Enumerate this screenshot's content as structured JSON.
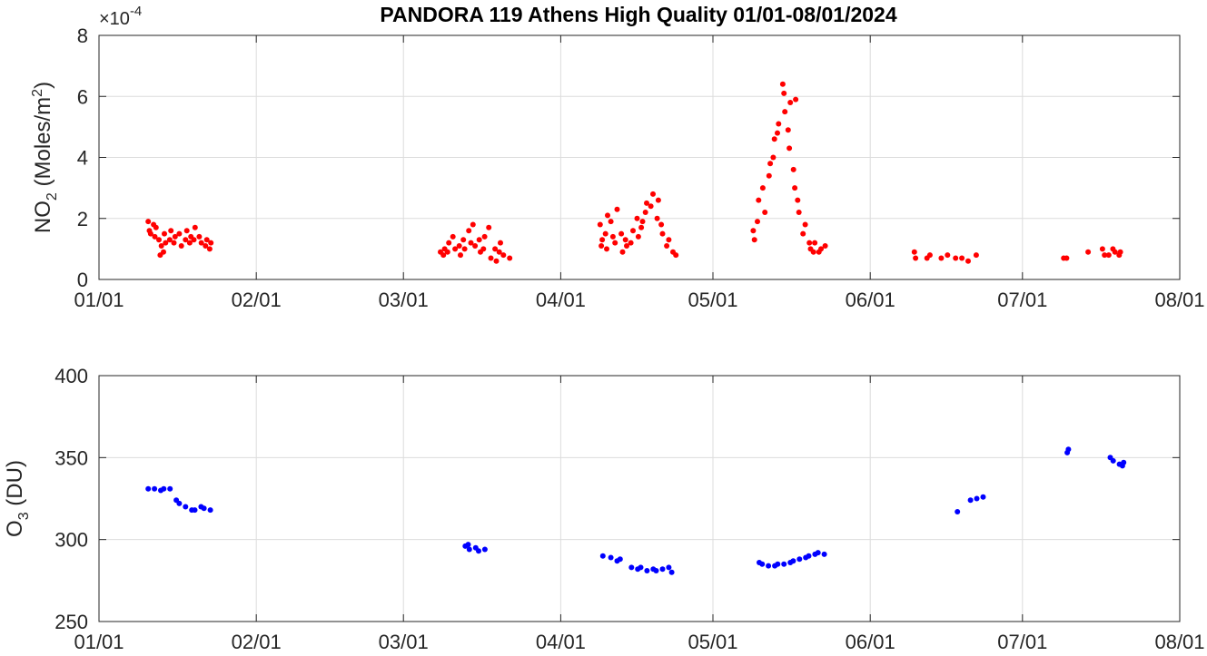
{
  "title": "PANDORA 119 Athens High Quality 01/01-08/01/2024",
  "colors": {
    "no2": "#ff0000",
    "o3": "#0000ff"
  },
  "chart_data": [
    {
      "type": "scatter",
      "ylabel": {
        "main": "NO",
        "sub": "2",
        "rest": " (Moles/m",
        "sup": "2",
        "end": ")"
      },
      "exponent": {
        "base": "×10",
        "power": "-4"
      },
      "ylim": [
        0,
        8
      ],
      "yticks": [
        0,
        2,
        4,
        6,
        8
      ],
      "ytick_labels": [
        "0",
        "2",
        "4",
        "6",
        "8"
      ],
      "xlim": [
        "2024-01-01",
        "2024-08-01"
      ],
      "xticks": [
        "2024-01-01",
        "2024-02-01",
        "2024-03-01",
        "2024-04-01",
        "2024-05-01",
        "2024-06-01",
        "2024-07-01",
        "2024-08-01"
      ],
      "xtick_labels": [
        "01/01",
        "02/01",
        "03/01",
        "04/01",
        "05/01",
        "06/01",
        "07/01",
        "08/01"
      ],
      "grid": true,
      "series": [
        {
          "color": "#ff0000",
          "points": [
            [
              "2024-01-11",
              1.9
            ],
            [
              "2024-01-11",
              1.6
            ],
            [
              "2024-01-11",
              1.5
            ],
            [
              "2024-01-12",
              1.8
            ],
            [
              "2024-01-12",
              1.4
            ],
            [
              "2024-01-12",
              1.7
            ],
            [
              "2024-01-13",
              1.3
            ],
            [
              "2024-01-13",
              0.8
            ],
            [
              "2024-01-13",
              1.1
            ],
            [
              "2024-01-14",
              1.5
            ],
            [
              "2024-01-14",
              1.2
            ],
            [
              "2024-01-14",
              0.9
            ],
            [
              "2024-01-15",
              1.3
            ],
            [
              "2024-01-15",
              1.6
            ],
            [
              "2024-01-16",
              1.2
            ],
            [
              "2024-01-16",
              1.4
            ],
            [
              "2024-01-17",
              1.1
            ],
            [
              "2024-01-17",
              1.5
            ],
            [
              "2024-01-18",
              1.3
            ],
            [
              "2024-01-18",
              1.6
            ],
            [
              "2024-01-19",
              1.2
            ],
            [
              "2024-01-19",
              1.4
            ],
            [
              "2024-01-20",
              1.3
            ],
            [
              "2024-01-20",
              1.7
            ],
            [
              "2024-01-21",
              1.2
            ],
            [
              "2024-01-21",
              1.4
            ],
            [
              "2024-01-22",
              1.1
            ],
            [
              "2024-01-22",
              1.3
            ],
            [
              "2024-01-23",
              1.0
            ],
            [
              "2024-01-23",
              1.2
            ],
            [
              "2024-03-08",
              0.9
            ],
            [
              "2024-03-09",
              0.8
            ],
            [
              "2024-03-09",
              1.0
            ],
            [
              "2024-03-10",
              0.9
            ],
            [
              "2024-03-10",
              1.2
            ],
            [
              "2024-03-11",
              1.0
            ],
            [
              "2024-03-11",
              1.4
            ],
            [
              "2024-03-12",
              1.1
            ],
            [
              "2024-03-12",
              0.8
            ],
            [
              "2024-03-13",
              1.3
            ],
            [
              "2024-03-13",
              1.0
            ],
            [
              "2024-03-14",
              1.2
            ],
            [
              "2024-03-14",
              1.6
            ],
            [
              "2024-03-15",
              1.1
            ],
            [
              "2024-03-15",
              1.8
            ],
            [
              "2024-03-16",
              1.3
            ],
            [
              "2024-03-16",
              0.9
            ],
            [
              "2024-03-17",
              1.0
            ],
            [
              "2024-03-17",
              1.4
            ],
            [
              "2024-03-18",
              0.7
            ],
            [
              "2024-03-18",
              1.7
            ],
            [
              "2024-03-19",
              1.0
            ],
            [
              "2024-03-19",
              0.6
            ],
            [
              "2024-03-20",
              0.9
            ],
            [
              "2024-03-20",
              1.2
            ],
            [
              "2024-03-21",
              0.8
            ],
            [
              "2024-03-22",
              0.7
            ],
            [
              "2024-04-09",
              1.3
            ],
            [
              "2024-04-09",
              1.8
            ],
            [
              "2024-04-09",
              1.1
            ],
            [
              "2024-04-10",
              2.1
            ],
            [
              "2024-04-10",
              1.5
            ],
            [
              "2024-04-10",
              1.0
            ],
            [
              "2024-04-11",
              1.4
            ],
            [
              "2024-04-11",
              1.9
            ],
            [
              "2024-04-12",
              2.3
            ],
            [
              "2024-04-12",
              1.2
            ],
            [
              "2024-04-13",
              1.5
            ],
            [
              "2024-04-13",
              0.9
            ],
            [
              "2024-04-14",
              1.3
            ],
            [
              "2024-04-14",
              1.1
            ],
            [
              "2024-04-15",
              1.6
            ],
            [
              "2024-04-15",
              1.2
            ],
            [
              "2024-04-16",
              2.0
            ],
            [
              "2024-04-16",
              1.4
            ],
            [
              "2024-04-17",
              1.7
            ],
            [
              "2024-04-17",
              1.9
            ],
            [
              "2024-04-18",
              2.2
            ],
            [
              "2024-04-18",
              2.5
            ],
            [
              "2024-04-19",
              2.8
            ],
            [
              "2024-04-19",
              2.4
            ],
            [
              "2024-04-20",
              2.0
            ],
            [
              "2024-04-20",
              2.6
            ],
            [
              "2024-04-21",
              1.8
            ],
            [
              "2024-04-21",
              1.5
            ],
            [
              "2024-04-22",
              1.3
            ],
            [
              "2024-04-22",
              1.1
            ],
            [
              "2024-04-23",
              0.9
            ],
            [
              "2024-04-24",
              0.8
            ],
            [
              "2024-05-09",
              1.6
            ],
            [
              "2024-05-09",
              1.3
            ],
            [
              "2024-05-10",
              1.9
            ],
            [
              "2024-05-10",
              2.6
            ],
            [
              "2024-05-11",
              2.2
            ],
            [
              "2024-05-11",
              3.0
            ],
            [
              "2024-05-12",
              3.4
            ],
            [
              "2024-05-12",
              3.8
            ],
            [
              "2024-05-13",
              4.0
            ],
            [
              "2024-05-13",
              4.6
            ],
            [
              "2024-05-14",
              4.8
            ],
            [
              "2024-05-14",
              5.1
            ],
            [
              "2024-05-15",
              5.5
            ],
            [
              "2024-05-15",
              6.4
            ],
            [
              "2024-05-15",
              6.1
            ],
            [
              "2024-05-16",
              5.8
            ],
            [
              "2024-05-16",
              4.9
            ],
            [
              "2024-05-16",
              4.3
            ],
            [
              "2024-05-17",
              5.9
            ],
            [
              "2024-05-17",
              3.6
            ],
            [
              "2024-05-17",
              3.0
            ],
            [
              "2024-05-18",
              2.6
            ],
            [
              "2024-05-18",
              2.2
            ],
            [
              "2024-05-19",
              1.8
            ],
            [
              "2024-05-19",
              1.5
            ],
            [
              "2024-05-20",
              1.2
            ],
            [
              "2024-05-20",
              1.0
            ],
            [
              "2024-05-21",
              0.9
            ],
            [
              "2024-05-21",
              1.2
            ],
            [
              "2024-05-22",
              1.0
            ],
            [
              "2024-05-22",
              0.9
            ],
            [
              "2024-05-23",
              1.1
            ],
            [
              "2024-06-10",
              0.9
            ],
            [
              "2024-06-10",
              0.7
            ],
            [
              "2024-06-12",
              0.7
            ],
            [
              "2024-06-13",
              0.8
            ],
            [
              "2024-06-15",
              0.7
            ],
            [
              "2024-06-16",
              0.8
            ],
            [
              "2024-06-18",
              0.7
            ],
            [
              "2024-06-19",
              0.7
            ],
            [
              "2024-06-20",
              0.6
            ],
            [
              "2024-06-22",
              0.8
            ],
            [
              "2024-07-09",
              0.7
            ],
            [
              "2024-07-10",
              0.7
            ],
            [
              "2024-07-14",
              0.9
            ],
            [
              "2024-07-17",
              0.8
            ],
            [
              "2024-07-17",
              1.0
            ],
            [
              "2024-07-18",
              0.8
            ],
            [
              "2024-07-19",
              0.9
            ],
            [
              "2024-07-19",
              1.0
            ],
            [
              "2024-07-20",
              0.8
            ],
            [
              "2024-07-20",
              0.9
            ]
          ]
        }
      ]
    },
    {
      "type": "scatter",
      "ylabel": {
        "main": "O",
        "sub": "3",
        "rest": " (DU)"
      },
      "ylim": [
        250,
        400
      ],
      "yticks": [
        250,
        300,
        350,
        400
      ],
      "ytick_labels": [
        "250",
        "300",
        "350",
        "400"
      ],
      "xlim": [
        "2024-01-01",
        "2024-08-01"
      ],
      "xticks": [
        "2024-01-01",
        "2024-02-01",
        "2024-03-01",
        "2024-04-01",
        "2024-05-01",
        "2024-06-01",
        "2024-07-01",
        "2024-08-01"
      ],
      "xtick_labels": [
        "01/01",
        "02/01",
        "03/01",
        "04/01",
        "05/01",
        "06/01",
        "07/01",
        "08/01"
      ],
      "grid": true,
      "series": [
        {
          "color": "#0000ff",
          "points": [
            [
              "2024-01-11",
              331
            ],
            [
              "2024-01-12",
              331
            ],
            [
              "2024-01-13",
              330
            ],
            [
              "2024-01-14",
              331
            ],
            [
              "2024-01-15",
              331
            ],
            [
              "2024-01-16",
              324
            ],
            [
              "2024-01-17",
              322
            ],
            [
              "2024-01-18",
              320
            ],
            [
              "2024-01-19",
              318
            ],
            [
              "2024-01-20",
              318
            ],
            [
              "2024-01-21",
              320
            ],
            [
              "2024-01-22",
              319
            ],
            [
              "2024-01-23",
              318
            ],
            [
              "2024-03-13",
              296
            ],
            [
              "2024-03-14",
              297
            ],
            [
              "2024-03-14",
              294
            ],
            [
              "2024-03-15",
              295
            ],
            [
              "2024-03-16",
              293
            ],
            [
              "2024-03-17",
              294
            ],
            [
              "2024-04-09",
              290
            ],
            [
              "2024-04-11",
              289
            ],
            [
              "2024-04-12",
              287
            ],
            [
              "2024-04-13",
              288
            ],
            [
              "2024-04-15",
              283
            ],
            [
              "2024-04-16",
              282
            ],
            [
              "2024-04-17",
              283
            ],
            [
              "2024-04-18",
              281
            ],
            [
              "2024-04-19",
              282
            ],
            [
              "2024-04-20",
              281
            ],
            [
              "2024-04-21",
              282
            ],
            [
              "2024-04-22",
              283
            ],
            [
              "2024-04-23",
              280
            ],
            [
              "2024-05-10",
              286
            ],
            [
              "2024-05-11",
              285
            ],
            [
              "2024-05-12",
              284
            ],
            [
              "2024-05-13",
              284
            ],
            [
              "2024-05-14",
              285
            ],
            [
              "2024-05-15",
              285
            ],
            [
              "2024-05-16",
              286
            ],
            [
              "2024-05-17",
              287
            ],
            [
              "2024-05-18",
              288
            ],
            [
              "2024-05-19",
              289
            ],
            [
              "2024-05-20",
              290
            ],
            [
              "2024-05-21",
              291
            ],
            [
              "2024-05-22",
              292
            ],
            [
              "2024-05-23",
              291
            ],
            [
              "2024-06-18",
              317
            ],
            [
              "2024-06-21",
              324
            ],
            [
              "2024-06-22",
              325
            ],
            [
              "2024-06-23",
              326
            ],
            [
              "2024-07-10",
              353
            ],
            [
              "2024-07-10",
              355
            ],
            [
              "2024-07-18",
              350
            ],
            [
              "2024-07-19",
              348
            ],
            [
              "2024-07-20",
              346
            ],
            [
              "2024-07-21",
              345
            ],
            [
              "2024-07-21",
              347
            ]
          ]
        }
      ]
    }
  ]
}
